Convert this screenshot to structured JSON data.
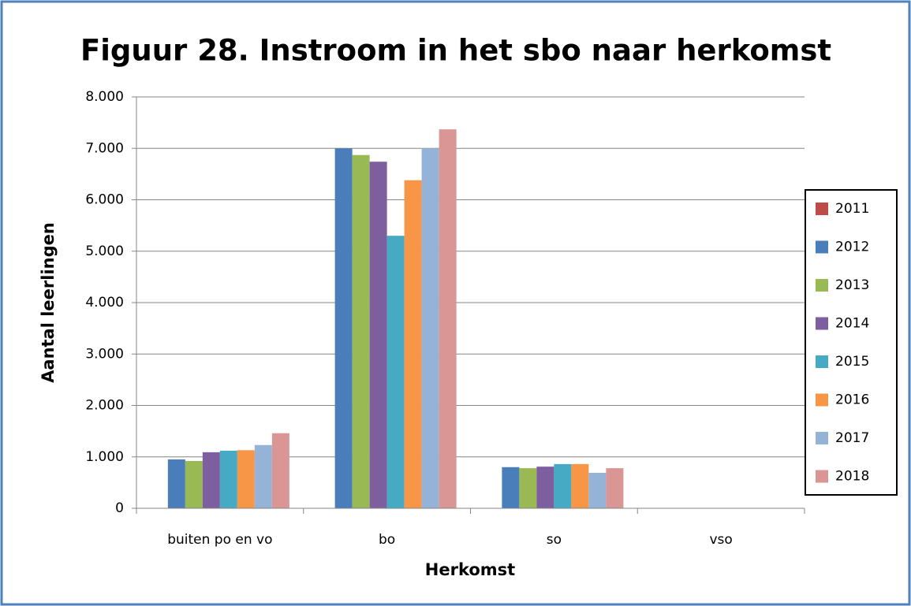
{
  "chart_data": {
    "type": "bar",
    "title": "Figuur 28. Instroom in het sbo naar herkomst",
    "x_label": "Herkomst",
    "y_label": "Aantal leerlingen",
    "categories": [
      "buiten po en vo",
      "bo",
      "so",
      "vso"
    ],
    "series": [
      {
        "name": "2011",
        "color": "#be4b48",
        "values": [
          0,
          0,
          0,
          0
        ]
      },
      {
        "name": "2012",
        "color": "#4a7ebb",
        "values": [
          950,
          7000,
          800,
          0
        ]
      },
      {
        "name": "2013",
        "color": "#98b954",
        "values": [
          920,
          6870,
          780,
          0
        ]
      },
      {
        "name": "2014",
        "color": "#7d5fa0",
        "values": [
          1090,
          6740,
          810,
          0
        ]
      },
      {
        "name": "2015",
        "color": "#46aac5",
        "values": [
          1120,
          5300,
          860,
          0
        ]
      },
      {
        "name": "2016",
        "color": "#f79646",
        "values": [
          1130,
          6380,
          860,
          0
        ]
      },
      {
        "name": "2017",
        "color": "#95b3d7",
        "values": [
          1230,
          7000,
          690,
          0
        ]
      },
      {
        "name": "2018",
        "color": "#d99694",
        "values": [
          1460,
          7370,
          780,
          0
        ]
      }
    ],
    "ylim": [
      0,
      8000
    ],
    "yticks": [
      0,
      {
        "value": 1000,
        "label": "1.000"
      },
      {
        "value": 2000,
        "label": "2.000"
      },
      {
        "value": 3000,
        "label": "3.000"
      },
      {
        "value": 4000,
        "label": "4.000"
      },
      {
        "value": 5000,
        "label": "5.000"
      },
      {
        "value": 6000,
        "label": "6.000"
      },
      {
        "value": 7000,
        "label": "7.000"
      },
      {
        "value": 8000,
        "label": "8.000"
      }
    ],
    "grid": true,
    "legend": "right"
  }
}
